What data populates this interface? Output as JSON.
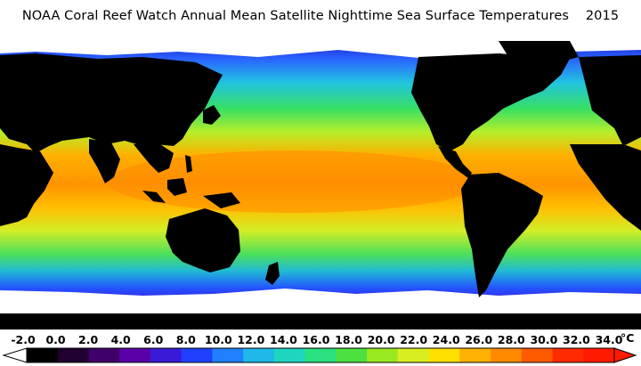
{
  "title": "NOAA Coral Reef Watch Annual Mean Satellite Nighttime Sea Surface Temperatures    2015",
  "colorbar": {
    "unit": "°C",
    "ticks": [
      "-2.0",
      "0.0",
      "2.0",
      "4.0",
      "6.0",
      "8.0",
      "10.0",
      "12.0",
      "14.0",
      "16.0",
      "18.0",
      "20.0",
      "22.0",
      "24.0",
      "26.0",
      "28.0",
      "30.0",
      "32.0",
      "34.0"
    ],
    "min": -2.0,
    "max": 34.0,
    "colors": [
      "#000000",
      "#200030",
      "#40006a",
      "#5a00a8",
      "#3a1ad8",
      "#2040ff",
      "#2080ff",
      "#1fb8e8",
      "#1ed6c0",
      "#2ae080",
      "#4ee040",
      "#9ae820",
      "#d8ee20",
      "#ffe000",
      "#ffb000",
      "#ff8a00",
      "#ff5a00",
      "#ff2a00",
      "#ff1a00"
    ]
  }
}
